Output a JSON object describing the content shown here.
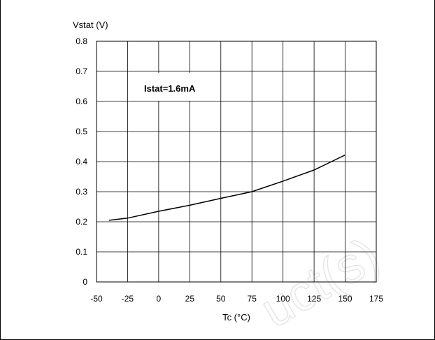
{
  "chart_data": {
    "type": "line",
    "title": "",
    "ylabel": "Vstat (V)",
    "xlabel": "Tc (°C)",
    "xlim": [
      -50,
      175
    ],
    "ylim": [
      0,
      0.8
    ],
    "xticks": [
      -50,
      -25,
      0,
      25,
      50,
      75,
      100,
      125,
      150,
      175
    ],
    "yticks": [
      0,
      0.1,
      0.2,
      0.3,
      0.4,
      0.5,
      0.6,
      0.7,
      0.8
    ],
    "ytick_labels": [
      "0",
      "0.1",
      "0.2",
      "0.3",
      "0.4",
      "0.5",
      "0.6",
      "0.7",
      "0.8"
    ],
    "grid": true,
    "annotation": "Istat=1.6mA",
    "series": [
      {
        "x": [
          -40,
          -25,
          0,
          25,
          50,
          75,
          100,
          125,
          150
        ],
        "y": [
          0.205,
          0.212,
          0.235,
          0.255,
          0.278,
          0.3,
          0.335,
          0.372,
          0.422
        ]
      }
    ],
    "colors": {
      "line": "#000000",
      "grid": "#000000"
    }
  },
  "watermark": "uct(s)"
}
